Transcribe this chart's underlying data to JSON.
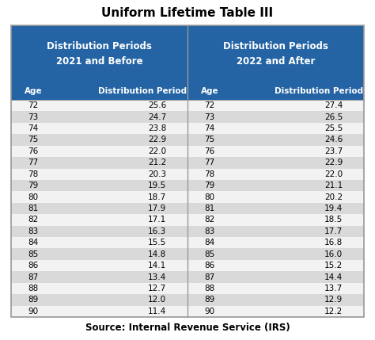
{
  "title": "Uniform Lifetime Table III",
  "source": "Source: Internal Revenue Service (IRS)",
  "header_left_line1": "Distribution Periods",
  "header_left_line2": "2021 and Before",
  "header_right_line1": "Distribution Periods",
  "header_right_line2": "2022 and After",
  "ages": [
    72,
    73,
    74,
    75,
    76,
    77,
    78,
    79,
    80,
    81,
    82,
    83,
    84,
    85,
    86,
    87,
    88,
    89,
    90
  ],
  "dist_2021": [
    25.6,
    24.7,
    23.8,
    22.9,
    22.0,
    21.2,
    20.3,
    19.5,
    18.7,
    17.9,
    17.1,
    16.3,
    15.5,
    14.8,
    14.1,
    13.4,
    12.7,
    12.0,
    11.4
  ],
  "dist_2022": [
    27.4,
    26.5,
    25.5,
    24.6,
    23.7,
    22.9,
    22.0,
    21.1,
    20.2,
    19.4,
    18.5,
    17.7,
    16.8,
    16.0,
    15.2,
    14.4,
    13.7,
    12.9,
    12.2
  ],
  "header_bg": "#2464A4",
  "header_text": "#FFFFFF",
  "row_even_bg": "#D9D9D9",
  "row_odd_bg": "#F2F2F2",
  "border_color": "#999999",
  "title_fontsize": 11,
  "source_fontsize": 8.5,
  "data_fontsize": 7.5,
  "col_header_fontsize": 7.5,
  "big_header_fontsize": 8.5
}
